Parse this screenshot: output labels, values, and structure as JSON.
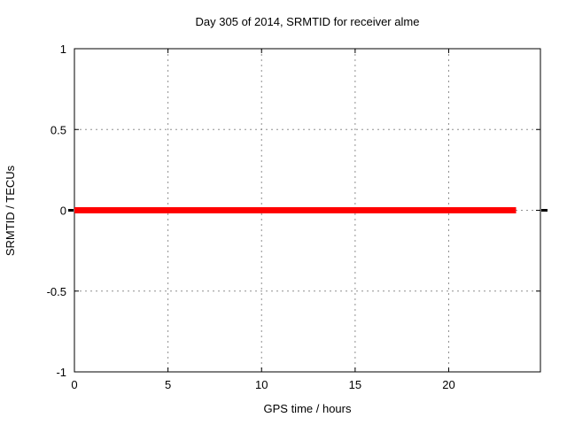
{
  "figure": {
    "background": "#ffffff",
    "text_color": "#000000",
    "border_color": "#000000"
  },
  "chart_data": {
    "type": "line",
    "title": "Day 305 of 2014, SRMTID for receiver alme",
    "xlabel": "GPS time / hours",
    "ylabel": "SRMTID / TECUs",
    "xlim": [
      0,
      24.9
    ],
    "ylim": [
      -1,
      1
    ],
    "grid": {
      "show": true,
      "color": "#909090",
      "style": "dotted"
    },
    "legend": "none",
    "xticks": [
      {
        "value": 0,
        "label": "0"
      },
      {
        "value": 5,
        "label": "5"
      },
      {
        "value": 10,
        "label": "10"
      },
      {
        "value": 15,
        "label": "15"
      },
      {
        "value": 20,
        "label": "20"
      }
    ],
    "yticks": [
      {
        "value": -1,
        "label": "-1"
      },
      {
        "value": -0.5,
        "label": "-0.5"
      },
      {
        "value": 0,
        "label": "0"
      },
      {
        "value": 0.5,
        "label": "0.5"
      },
      {
        "value": 1,
        "label": "1"
      }
    ],
    "series": [
      {
        "name": "SRMTID",
        "color": "#ff0000",
        "linewidth": 7,
        "x": [
          0,
          23.6
        ],
        "y": [
          0,
          0
        ]
      }
    ]
  }
}
